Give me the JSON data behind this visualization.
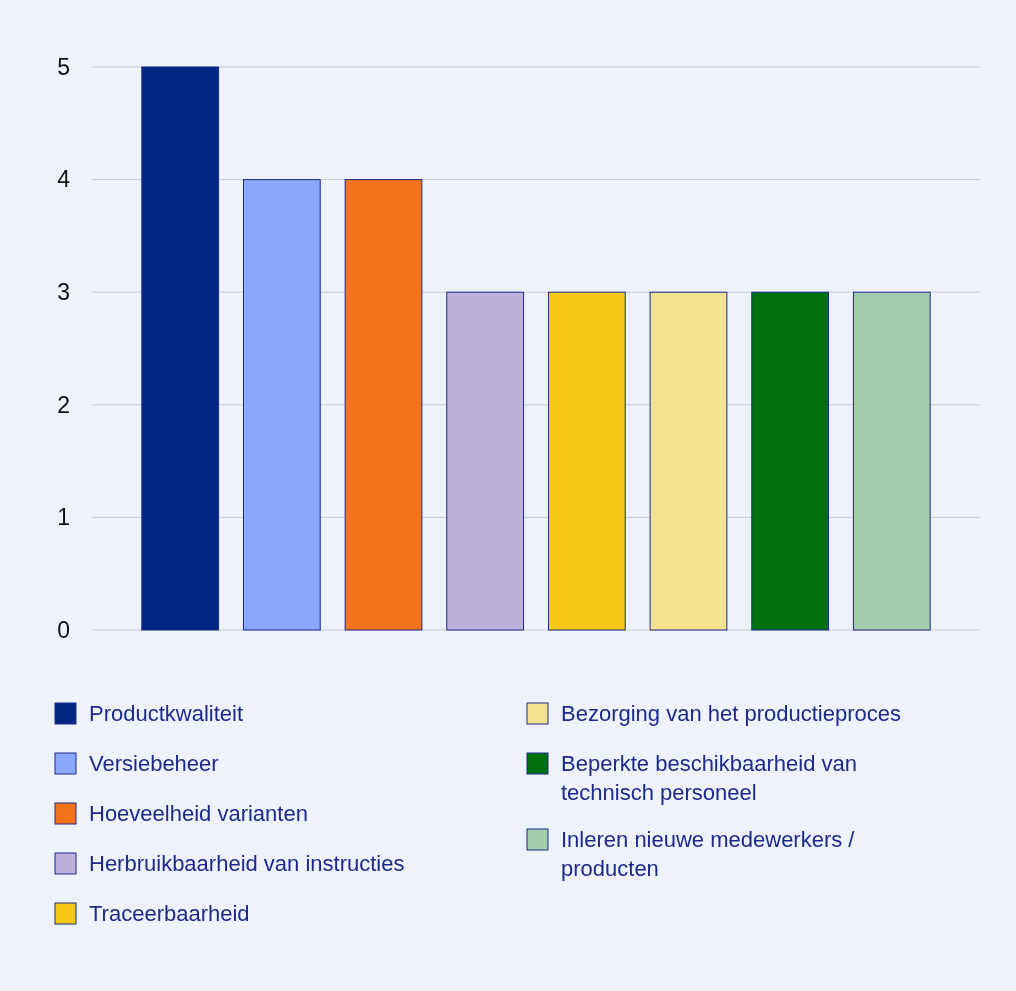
{
  "chart_data": {
    "type": "bar",
    "stacked": true,
    "categories": [
      null,
      null,
      null,
      null,
      null,
      null,
      null,
      null
    ],
    "series": [
      {
        "name": "Productkwaliteit",
        "color": "#002882",
        "values": [
          5,
          null,
          null,
          null,
          null,
          null,
          null,
          null
        ]
      },
      {
        "name": "Versiebeheer",
        "color": "#8aa8fe",
        "values": [
          null,
          4,
          null,
          null,
          null,
          null,
          null,
          null
        ]
      },
      {
        "name": "Hoeveelheid varianten",
        "color": "#f3731b",
        "values": [
          null,
          null,
          4,
          null,
          null,
          null,
          null,
          null
        ]
      },
      {
        "name": "Herbruikbaarheid van instructies",
        "color": "#bdb0dc",
        "values": [
          null,
          null,
          null,
          3,
          null,
          null,
          null,
          null
        ]
      },
      {
        "name": "Traceerbaarheid",
        "color": "#f5c816",
        "values": [
          null,
          null,
          null,
          null,
          3,
          null,
          null,
          null
        ]
      },
      {
        "name": "Bezorging van het productieproces",
        "color": "#f5e291",
        "values": [
          null,
          null,
          null,
          null,
          null,
          3,
          null,
          null
        ]
      },
      {
        "name": "Beperkte beschikbaarheid van technisch personeel",
        "color": "#00700c",
        "values": [
          null,
          null,
          null,
          null,
          null,
          null,
          3,
          null
        ]
      },
      {
        "name": "Inleren nieuwe medewerkers / producten",
        "color": "#a3cdaa",
        "values": [
          null,
          null,
          null,
          null,
          null,
          null,
          null,
          3
        ]
      }
    ],
    "ylim": [
      0,
      5
    ],
    "yticks": [
      0,
      1,
      2,
      3,
      4,
      5
    ],
    "grid": "y",
    "legend": "bottom",
    "tick_labels": "y"
  }
}
